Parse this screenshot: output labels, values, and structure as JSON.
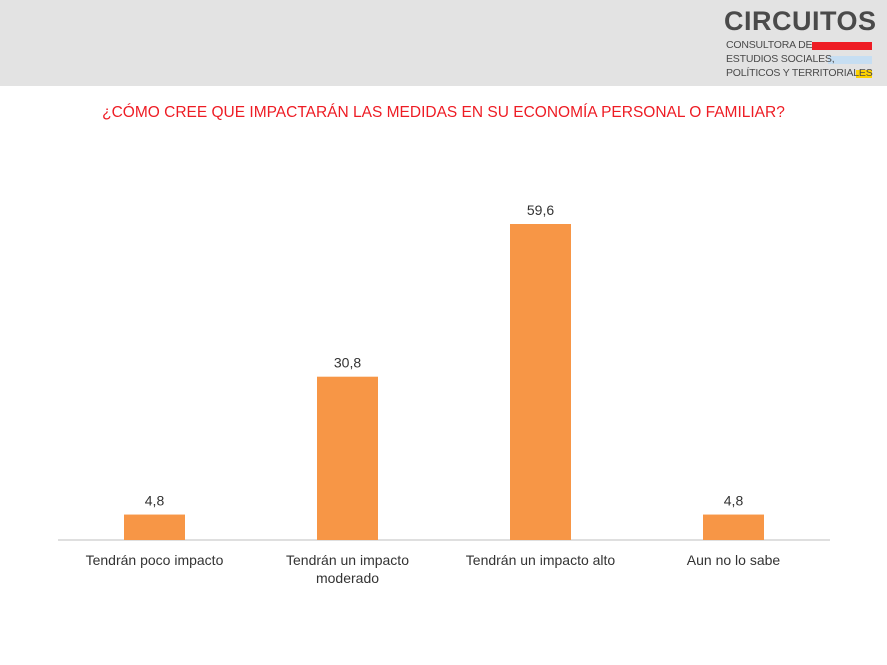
{
  "header": {
    "logo_word": "CIRCUITOS",
    "logo_lines": [
      "CONSULTORA DE",
      "ESTUDIOS SOCIALES,",
      "POLÍTICOS Y TERRITORIALES"
    ],
    "stripe_colors": [
      "#ee1c24",
      "#c6def2",
      "#ffd200"
    ]
  },
  "colors": {
    "bar": "#f79646",
    "title": "#ee1c24",
    "axis": "#bfbfbf"
  },
  "chart_data": {
    "type": "bar",
    "title": "¿CÓMO CREE QUE IMPACTARÁN LAS MEDIDAS EN SU ECONOMÍA PERSONAL O FAMILIAR?",
    "categories": [
      "Tendrán poco impacto",
      "Tendrán un impacto moderado",
      "Tendrán un impacto alto",
      "Aun no lo sabe"
    ],
    "values": [
      4.8,
      30.8,
      59.6,
      4.8
    ],
    "value_labels": [
      "4,8",
      "30,8",
      "59,6",
      "4,8"
    ],
    "ylim": [
      0,
      70
    ],
    "grid": false,
    "legend": "none"
  }
}
